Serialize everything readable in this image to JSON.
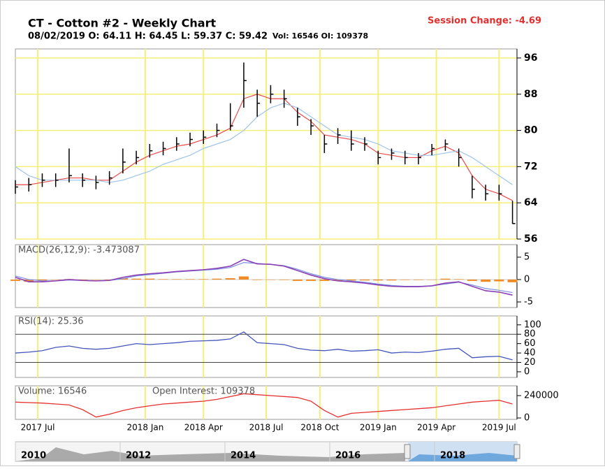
{
  "header": {
    "title": "CT - Cotton #2 - Weekly Chart",
    "subtitle": "08/02/2019 O: 64.11 H: 64.45 L: 59.37 C: 59.42",
    "vol_oi": "Vol: 16546 OI: 109378",
    "session_change": "Session Change: -4.69"
  },
  "chart_data": [
    {
      "type": "ohlc",
      "x": [
        0,
        3,
        6,
        9,
        12,
        15,
        18,
        21,
        24,
        27,
        30,
        33,
        36,
        39,
        42,
        45,
        48,
        51,
        54,
        57,
        60,
        63,
        66,
        69,
        72,
        75,
        78,
        81,
        84,
        87,
        90,
        93,
        96,
        99,
        102,
        105,
        108,
        111
      ],
      "xlim": [
        0,
        112
      ],
      "xticks": [
        {
          "value": 5,
          "label": "2017 Jul"
        },
        {
          "value": 29,
          "label": "2018 Jan"
        },
        {
          "value": 42,
          "label": "2018 Apr"
        },
        {
          "value": 56,
          "label": "2018 Jul"
        },
        {
          "value": 68,
          "label": "2018 Oct"
        },
        {
          "value": 81,
          "label": "2019 Jan"
        },
        {
          "value": 94,
          "label": "2019 Apr"
        },
        {
          "value": 108,
          "label": "2019 Jul"
        }
      ],
      "high": [
        69,
        69.5,
        70.5,
        70.5,
        76,
        70.5,
        70,
        71,
        76,
        75.5,
        77,
        77.5,
        78.5,
        79.5,
        80,
        81.5,
        86,
        95,
        89,
        90,
        89,
        85,
        82.5,
        79,
        80.5,
        80,
        78.5,
        75.5,
        76,
        75.5,
        75,
        77,
        78,
        76,
        70,
        68,
        68,
        64.45
      ],
      "low": [
        66,
        66.5,
        67.5,
        67.5,
        68.5,
        67.5,
        67,
        68,
        70.5,
        72.5,
        74,
        74.5,
        75.5,
        76.5,
        77,
        78.5,
        80,
        85,
        83,
        86,
        85,
        81,
        79,
        75,
        77,
        75.5,
        75.5,
        72.5,
        73.5,
        72.5,
        72.5,
        74.5,
        75.5,
        72,
        65,
        64.5,
        64.5,
        59.37
      ],
      "close": [
        67.5,
        68,
        69,
        69,
        70,
        69,
        68.5,
        69.5,
        73,
        74,
        75.5,
        76,
        77,
        78,
        78.5,
        80,
        81,
        91,
        86,
        88,
        87,
        83,
        81,
        77,
        79,
        77,
        77,
        74,
        75,
        74,
        74,
        76,
        77,
        74,
        67,
        66,
        66,
        59.42
      ],
      "color": "#000000",
      "moving_averages": [
        {
          "color": "#e84a4a",
          "values": [
            68,
            68,
            68.5,
            69,
            69.5,
            69.5,
            69,
            69,
            71,
            73,
            74.5,
            75.5,
            76.5,
            77,
            78,
            79,
            80.5,
            87,
            88,
            87,
            87,
            84,
            82,
            79,
            78.5,
            78,
            77,
            75,
            74.5,
            74,
            74,
            75.5,
            76.5,
            75,
            70,
            67,
            66,
            64.5
          ]
        },
        {
          "color": "#9ec4e8",
          "values": [
            72,
            70,
            69,
            69,
            69,
            69,
            69,
            68.5,
            69,
            70,
            71,
            72.5,
            73.5,
            74.5,
            76,
            77,
            78,
            80,
            83,
            85,
            86,
            85,
            83,
            81,
            79,
            78.5,
            78,
            77,
            75.5,
            75,
            74.5,
            74.5,
            75,
            75.5,
            74,
            72,
            70,
            68
          ]
        }
      ],
      "ylim": [
        56,
        98
      ],
      "yticks": [
        56,
        64,
        72,
        80,
        88,
        96
      ],
      "grid": true
    },
    {
      "type": "macd",
      "title": "MACD(26,12,9): -3.473087",
      "ylim": [
        -6.25,
        7.8
      ],
      "yticks": [
        -5,
        0,
        5
      ],
      "macd": {
        "color": "#8a3fb5",
        "values": [
          0.5,
          -0.5,
          -0.5,
          -0.3,
          0,
          -0.2,
          -0.3,
          -0.2,
          0.5,
          1,
          1.3,
          1.5,
          1.8,
          2,
          2.2,
          2.5,
          3,
          4.5,
          3.5,
          3.4,
          3,
          2,
          1,
          0.2,
          -0.3,
          -0.5,
          -0.8,
          -1.2,
          -1.5,
          -1.6,
          -1.6,
          -1.4,
          -0.8,
          -0.5,
          -1.5,
          -2.5,
          -2.8,
          -3.47
        ]
      },
      "signal": {
        "color": "#7b8fe0",
        "values": [
          0.8,
          0,
          -0.3,
          -0.3,
          -0.1,
          -0.2,
          -0.3,
          -0.2,
          0.2,
          0.8,
          1.1,
          1.4,
          1.7,
          1.9,
          2.1,
          2.3,
          2.7,
          3.8,
          3.6,
          3.4,
          3.1,
          2.3,
          1.3,
          0.5,
          0,
          -0.3,
          -0.6,
          -1,
          -1.3,
          -1.5,
          -1.5,
          -1.4,
          -1,
          -0.6,
          -1.2,
          -2,
          -2.4,
          -2.9
        ]
      },
      "histogram": {
        "color": "#f08a24",
        "values": [
          -0.3,
          -0.5,
          -0.2,
          0,
          0.1,
          0,
          0,
          0,
          0.3,
          0.2,
          0.2,
          0.1,
          0.1,
          0.1,
          0.1,
          0.2,
          0.3,
          0.7,
          -0.1,
          0,
          -0.1,
          -0.3,
          -0.3,
          -0.3,
          -0.3,
          -0.2,
          -0.2,
          -0.2,
          -0.2,
          -0.1,
          -0.1,
          0,
          0.2,
          0.1,
          -0.3,
          -0.5,
          -0.4,
          -0.6
        ]
      }
    },
    {
      "type": "line",
      "title": "RSI(14): 25.36",
      "ylim": [
        -12,
        119
      ],
      "yticks": [
        0,
        20,
        40,
        60,
        80,
        100
      ],
      "guides": [
        20,
        80
      ],
      "color": "#4455bb",
      "values": [
        40,
        42,
        45,
        52,
        55,
        50,
        48,
        50,
        55,
        60,
        58,
        60,
        62,
        65,
        66,
        67,
        70,
        85,
        62,
        60,
        58,
        50,
        46,
        45,
        48,
        44,
        45,
        47,
        40,
        42,
        41,
        44,
        48,
        50,
        30,
        32,
        33,
        25.36
      ]
    },
    {
      "type": "line",
      "title": "Volume: 16546",
      "title2": "Open Interest: 109378",
      "ylim": [
        -15000,
        345000
      ],
      "yticks": [
        0,
        240000
      ],
      "color": "#e53030",
      "values": [
        170000,
        165000,
        160000,
        150000,
        140000,
        90000,
        10000,
        40000,
        80000,
        110000,
        130000,
        150000,
        160000,
        170000,
        180000,
        200000,
        230000,
        260000,
        250000,
        240000,
        230000,
        220000,
        180000,
        80000,
        10000,
        50000,
        60000,
        70000,
        80000,
        90000,
        100000,
        110000,
        130000,
        150000,
        170000,
        180000,
        190000,
        150000
      ]
    }
  ],
  "navigator": {
    "labels": [
      "2010",
      "2012",
      "2014",
      "2016",
      "2018"
    ]
  }
}
